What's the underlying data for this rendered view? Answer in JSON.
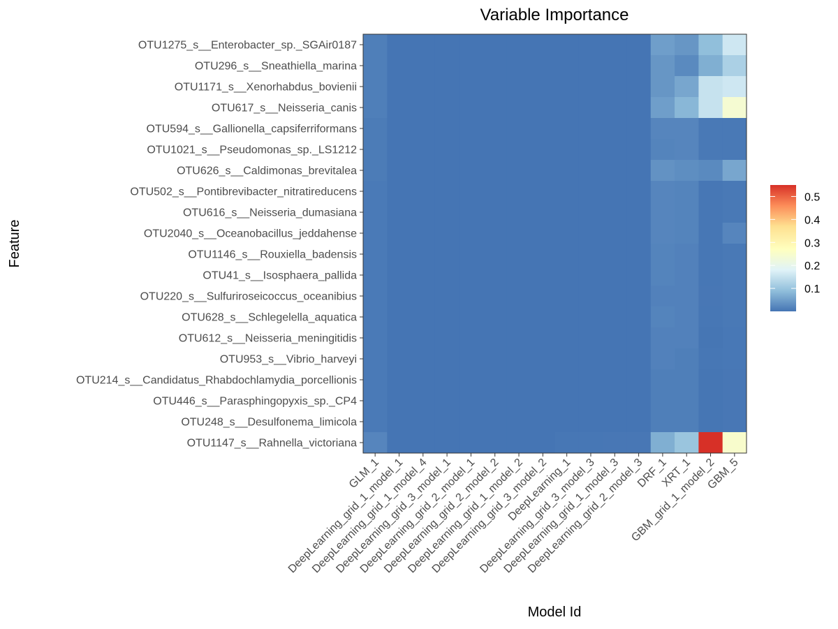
{
  "chart_data": {
    "type": "heatmap",
    "title": "Variable Importance",
    "xlabel": "Model Id",
    "ylabel": "Feature",
    "x_categories": [
      "GLM_1",
      "DeepLearning_grid_1_model_1",
      "DeepLearning_grid_1_model_4",
      "DeepLearning_grid_3_model_1",
      "DeepLearning_grid_2_model_1",
      "DeepLearning_grid_2_model_2",
      "DeepLearning_grid_1_model_2",
      "DeepLearning_grid_3_model_2",
      "DeepLearning_1",
      "DeepLearning_grid_3_model_3",
      "DeepLearning_grid_1_model_3",
      "DeepLearning_grid_2_model_3",
      "DRF_1",
      "XRT_1",
      "GBM_grid_1_model_2",
      "GBM_5"
    ],
    "y_categories": [
      "OTU1275_s__Enterobacter_sp._SGAir0187",
      "OTU296_s__Sneathiella_marina",
      "OTU1171_s__Xenorhabdus_bovienii",
      "OTU617_s__Neisseria_canis",
      "OTU594_s__Gallionella_capsiferriformans",
      "OTU1021_s__Pseudomonas_sp._LS1212",
      "OTU626_s__Caldimonas_brevitalea",
      "OTU502_s__Pontibrevibacter_nitratireducens",
      "OTU616_s__Neisseria_dumasiana",
      "OTU2040_s__Oceanobacillus_jeddahense",
      "OTU1146_s__Rouxiella_badensis",
      "OTU41_s__Isosphaera_pallida",
      "OTU220_s__Sulfuriroseicoccus_oceanibius",
      "OTU628_s__Schlegelella_aquatica",
      "OTU612_s__Neisseria_meningitidis",
      "OTU953_s__Vibrio_harveyi",
      "OTU214_s__Candidatus_Rhabdochlamydia_porcellionis",
      "OTU446_s__Parasphingopyxis_sp._CP4",
      "OTU248_s__Desulfonema_limicola",
      "OTU1147_s__Rahnella_victoriana"
    ],
    "values": [
      [
        0.012,
        0,
        0,
        0,
        0,
        0,
        0,
        0,
        0,
        0,
        0,
        0,
        0.05,
        0.04,
        0.09,
        0.16
      ],
      [
        0.012,
        0,
        0,
        0,
        0,
        0,
        0,
        0,
        0,
        0,
        0,
        0,
        0.04,
        0.025,
        0.07,
        0.12
      ],
      [
        0.012,
        0,
        0,
        0,
        0,
        0,
        0,
        0,
        0,
        0,
        0,
        0,
        0.04,
        0.06,
        0.15,
        0.16
      ],
      [
        0.012,
        0,
        0,
        0,
        0,
        0,
        0,
        0,
        0,
        0,
        0,
        0,
        0.05,
        0.08,
        0.15,
        0.24
      ],
      [
        0.008,
        0,
        0,
        0,
        0,
        0,
        0,
        0,
        0,
        0,
        0,
        0,
        0.02,
        0.02,
        0.005,
        0.005
      ],
      [
        0.008,
        0,
        0,
        0,
        0,
        0,
        0,
        0,
        0,
        0,
        0,
        0,
        0.018,
        0.02,
        0.005,
        0.005
      ],
      [
        0.008,
        0,
        0,
        0,
        0,
        0,
        0,
        0,
        0,
        0,
        0,
        0,
        0.035,
        0.03,
        0.025,
        0.06
      ],
      [
        0.006,
        0,
        0,
        0,
        0,
        0,
        0,
        0,
        0,
        0,
        0,
        0,
        0.02,
        0.018,
        0.002,
        0.005
      ],
      [
        0.006,
        0,
        0,
        0,
        0,
        0,
        0,
        0,
        0,
        0,
        0,
        0,
        0.02,
        0.018,
        0.002,
        0.005
      ],
      [
        0.006,
        0,
        0,
        0,
        0,
        0,
        0,
        0,
        0,
        0,
        0,
        0,
        0.02,
        0.018,
        0.002,
        0.02
      ],
      [
        0.006,
        0,
        0,
        0,
        0,
        0,
        0,
        0,
        0,
        0,
        0,
        0,
        0.018,
        0.015,
        0.002,
        0.005
      ],
      [
        0.006,
        0,
        0,
        0,
        0,
        0,
        0,
        0,
        0,
        0,
        0,
        0,
        0.018,
        0.015,
        0.002,
        0.005
      ],
      [
        0.006,
        0,
        0,
        0,
        0,
        0,
        0,
        0,
        0,
        0,
        0,
        0,
        0.015,
        0.015,
        0.003,
        0.005
      ],
      [
        0.006,
        0,
        0,
        0,
        0,
        0,
        0,
        0,
        0,
        0,
        0,
        0,
        0.018,
        0.015,
        0.002,
        0.005
      ],
      [
        0.006,
        0,
        0,
        0,
        0,
        0,
        0,
        0,
        0,
        0,
        0,
        0,
        0.015,
        0.015,
        0.001,
        0.004
      ],
      [
        0.006,
        0,
        0,
        0,
        0,
        0,
        0,
        0,
        0,
        0,
        0,
        0,
        0.015,
        0.012,
        0.002,
        0.004
      ],
      [
        0.006,
        0,
        0,
        0,
        0,
        0,
        0,
        0,
        0,
        0,
        0,
        0,
        0.012,
        0.012,
        0.001,
        0.003
      ],
      [
        0.006,
        0,
        0,
        0,
        0,
        0,
        0,
        0,
        0,
        0,
        0,
        0,
        0.012,
        0.012,
        0.001,
        0.003
      ],
      [
        0.006,
        0,
        0,
        0,
        0,
        0,
        0,
        0,
        0,
        0,
        0,
        0,
        0.012,
        0.012,
        0.001,
        0.003
      ],
      [
        0.02,
        0,
        0,
        0,
        0,
        0,
        0,
        0,
        0.002,
        0.002,
        0.003,
        0.003,
        0.07,
        0.1,
        0.55,
        0.25
      ]
    ],
    "colorscale": {
      "min": 0,
      "max": 0.55,
      "stops": [
        {
          "v": 0.0,
          "color": "#4575b4"
        },
        {
          "v": 0.09,
          "color": "#91bfdb"
        },
        {
          "v": 0.18,
          "color": "#e0f3f8"
        },
        {
          "v": 0.27,
          "color": "#ffffbf"
        },
        {
          "v": 0.37,
          "color": "#fee090"
        },
        {
          "v": 0.46,
          "color": "#fc8d59"
        },
        {
          "v": 0.55,
          "color": "#d73027"
        }
      ]
    },
    "legend": {
      "position": "right",
      "ticks": [
        0.1,
        0.2,
        0.3,
        0.4,
        0.5
      ],
      "tick_labels": [
        "0.1",
        "0.2",
        "0.3",
        "0.4",
        "0.5"
      ]
    },
    "grid": false
  }
}
